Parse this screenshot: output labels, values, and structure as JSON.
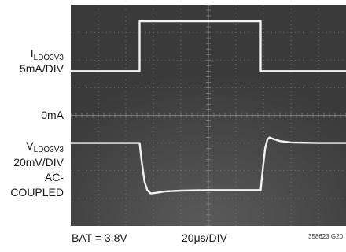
{
  "labels": {
    "i_ch_main": "I",
    "i_ch_sub": "LDO3V3",
    "i_scale": "5mA/DIV",
    "zero": "0mA",
    "v_ch_main": "V",
    "v_ch_sub": "LDO3V3",
    "v_scale": "20mV/DIV",
    "coupling_1": "AC-",
    "coupling_2": "COUPLED"
  },
  "footer": {
    "bat": "BAT = 3.8V",
    "timebase": "20μs/DIV",
    "figure_id": "358623 G20"
  },
  "colors": {
    "screen": "#404040",
    "grid": "#8a8a8a",
    "trace": "#f2f2f2"
  },
  "chart_data": {
    "type": "line",
    "x_divisions": 10,
    "y_divisions": 8,
    "series": [
      {
        "name": "I",
        "x_div": [
          0,
          2.5,
          2.5,
          6.9,
          6.9,
          10
        ],
        "y_div": [
          5.6,
          5.6,
          7.4,
          7.4,
          5.6,
          5.6
        ]
      },
      {
        "name": "V",
        "x_div": [
          0,
          2.5,
          2.58,
          2.68,
          2.78,
          2.9,
          3.1,
          3.4,
          4.0,
          5.0,
          6.0,
          6.9,
          6.98,
          7.06,
          7.14,
          7.22,
          7.35,
          7.6,
          8.0,
          9.0,
          10
        ],
        "y_div": [
          3.0,
          3.0,
          2.3,
          1.6,
          1.3,
          1.18,
          1.2,
          1.25,
          1.28,
          1.3,
          1.3,
          1.3,
          2.1,
          2.8,
          3.12,
          3.2,
          3.15,
          3.07,
          3.02,
          3.0,
          3.0
        ]
      }
    ]
  }
}
